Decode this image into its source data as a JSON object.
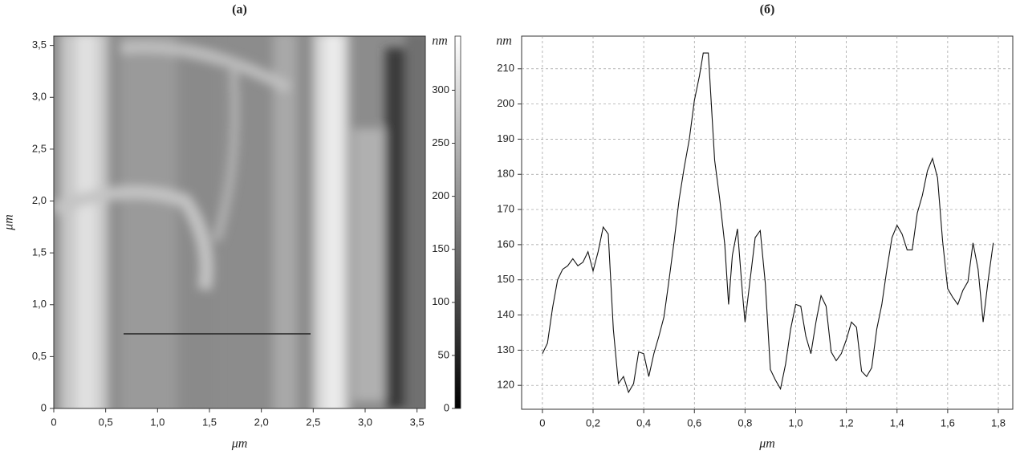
{
  "chart_data": [
    {
      "type": "image",
      "title": "(a)",
      "xlabel": "μm",
      "ylabel": "μm",
      "xlim": [
        0,
        3.58
      ],
      "ylim": [
        0,
        3.59
      ],
      "xticks": [
        0,
        {
          "value": 0.5,
          "label": "0,5"
        },
        {
          "value": 1,
          "label": "1,0"
        },
        {
          "value": 1.5,
          "label": "1,5"
        },
        {
          "value": 2,
          "label": "2,0"
        },
        {
          "value": 2.5,
          "label": "2,5"
        },
        {
          "value": 3,
          "label": "3,0"
        },
        {
          "value": 3.5,
          "label": "3,5"
        }
      ],
      "yticks": [
        0,
        {
          "value": 0.5,
          "label": "0,5"
        },
        {
          "value": 1,
          "label": "1,0"
        },
        {
          "value": 1.5,
          "label": "1,5"
        },
        {
          "value": 2,
          "label": "2,0"
        },
        {
          "value": 2.5,
          "label": "2,5"
        },
        {
          "value": 3,
          "label": "3,0"
        },
        {
          "value": 3.5,
          "label": "3,5"
        }
      ],
      "colorbar": {
        "label": "nm",
        "lim": [
          0,
          351
        ],
        "ticks": [
          0,
          50,
          100,
          150,
          200,
          250,
          300
        ]
      }
    },
    {
      "type": "line",
      "title": "(б)",
      "xlabel": "μm",
      "ylabel": "nm",
      "color": "#111111",
      "grid": true,
      "xlim": [
        -0.082,
        1.857
      ],
      "ylim": [
        113.2,
        219.3
      ],
      "xticks": [
        0,
        {
          "value": 0.2,
          "label": "0,2"
        },
        {
          "value": 0.4,
          "label": "0,4"
        },
        {
          "value": 0.6,
          "label": "0,6"
        },
        {
          "value": 0.8,
          "label": "0,8"
        },
        {
          "value": 1,
          "label": "1,0"
        },
        {
          "value": 1.2,
          "label": "1,2"
        },
        {
          "value": 1.4,
          "label": "1,4"
        },
        {
          "value": 1.6,
          "label": "1,6"
        },
        {
          "value": 1.8,
          "label": "1,8"
        }
      ],
      "yticks": [
        120,
        130,
        140,
        150,
        160,
        170,
        180,
        190,
        200,
        210
      ],
      "x": [
        0,
        0.02,
        0.04,
        0.06,
        0.08,
        0.1,
        0.12,
        0.14,
        0.16,
        0.18,
        0.2,
        0.22,
        0.24,
        0.26,
        0.28,
        0.3,
        0.32,
        0.34,
        0.36,
        0.38,
        0.4,
        0.42,
        0.44,
        0.46,
        0.48,
        0.5,
        0.52,
        0.54,
        0.56,
        0.58,
        0.6,
        0.62,
        0.635,
        0.655,
        0.68,
        0.7,
        0.72,
        0.735,
        0.75,
        0.77,
        0.79,
        0.8,
        0.82,
        0.84,
        0.86,
        0.88,
        0.9,
        0.92,
        0.94,
        0.96,
        0.98,
        1,
        1.02,
        1.04,
        1.06,
        1.08,
        1.1,
        1.12,
        1.14,
        1.16,
        1.18,
        1.2,
        1.22,
        1.24,
        1.26,
        1.28,
        1.3,
        1.32,
        1.34,
        1.36,
        1.38,
        1.4,
        1.42,
        1.44,
        1.46,
        1.48,
        1.5,
        1.52,
        1.54,
        1.56,
        1.58,
        1.6,
        1.62,
        1.64,
        1.66,
        1.68,
        1.7,
        1.72,
        1.74,
        1.76,
        1.78
      ],
      "values": [
        129,
        132,
        142,
        150,
        153,
        154,
        156,
        154,
        155,
        158,
        152.5,
        158,
        165,
        163,
        136,
        120.5,
        122.5,
        118,
        120.5,
        129.5,
        129,
        122.5,
        129,
        134,
        139.5,
        150,
        161,
        173,
        182,
        190,
        201,
        208,
        214.5,
        214.5,
        184,
        173,
        160,
        143,
        157,
        164.5,
        146,
        138,
        150,
        162,
        164,
        149,
        124.5,
        121.5,
        119,
        126,
        136,
        143,
        142.5,
        134,
        129,
        138,
        145.5,
        142.5,
        129.5,
        127,
        129,
        133,
        138,
        136.5,
        124,
        122.5,
        125,
        136,
        143,
        153,
        162,
        165.5,
        163,
        158.5,
        158.5,
        169,
        174,
        181,
        184.5,
        179,
        161,
        147.5,
        145,
        143,
        147,
        149.5,
        160.5,
        153,
        138,
        150,
        160.5
      ]
    }
  ]
}
